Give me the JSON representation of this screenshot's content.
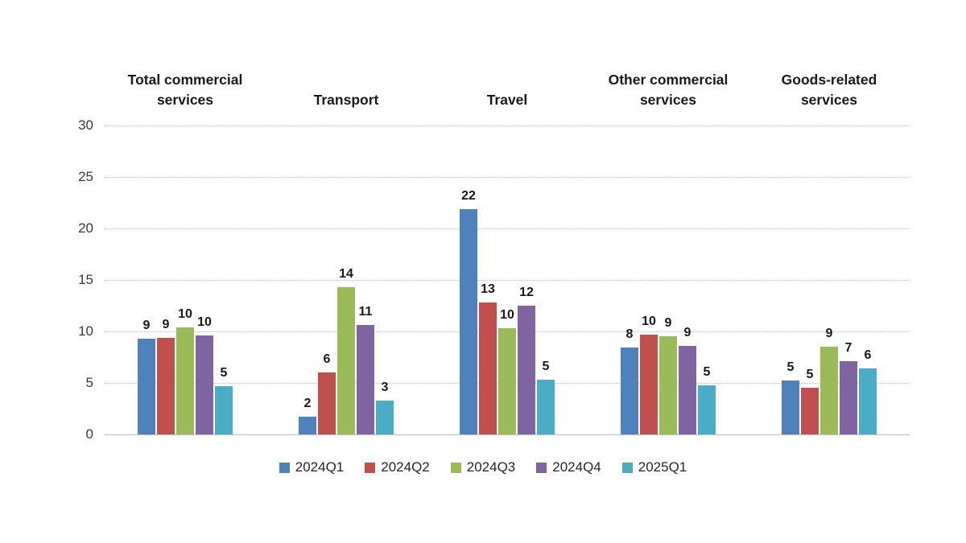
{
  "chart_data": {
    "type": "bar",
    "title": "",
    "categories": [
      "Total commercial services",
      "Transport",
      "Travel",
      "Other commercial services",
      "Goods-related services"
    ],
    "series": [
      {
        "name": "2024Q1",
        "color": "#4F81BD",
        "values": [
          9.3,
          1.7,
          21.9,
          8.4,
          5.2
        ],
        "labels": [
          "9",
          "2",
          "22",
          "8",
          "5"
        ]
      },
      {
        "name": "2024Q2",
        "color": "#C0504D",
        "values": [
          9.4,
          6.0,
          12.8,
          9.7,
          4.5
        ],
        "labels": [
          "9",
          "6",
          "13",
          "10",
          "5"
        ]
      },
      {
        "name": "2024Q3",
        "color": "#9BBB59",
        "values": [
          10.4,
          14.3,
          10.3,
          9.5,
          8.5
        ],
        "labels": [
          "10",
          "14",
          "10",
          "9",
          "9"
        ]
      },
      {
        "name": "2024Q4",
        "color": "#8064A2",
        "values": [
          9.6,
          10.6,
          12.5,
          8.6,
          7.1
        ],
        "labels": [
          "10",
          "11",
          "12",
          "9",
          "7"
        ]
      },
      {
        "name": "2025Q1",
        "color": "#4BACC6",
        "values": [
          4.7,
          3.3,
          5.3,
          4.8,
          6.4
        ],
        "labels": [
          "5",
          "3",
          "5",
          "5",
          "6"
        ]
      }
    ],
    "xlabel": "",
    "ylabel": "",
    "ylim": [
      0,
      30
    ],
    "yticks": [
      0,
      5,
      10,
      15,
      20,
      25,
      30
    ],
    "grid": "horizontal-dotted",
    "legend_position": "bottom",
    "data_labels": "above-bars"
  }
}
